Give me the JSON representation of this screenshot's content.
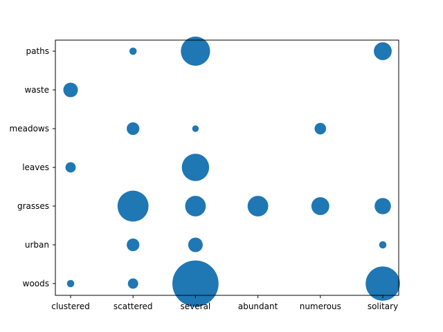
{
  "chart_data": {
    "type": "scatter",
    "x_categories": [
      "clustered",
      "scattered",
      "several",
      "abundant",
      "numerous",
      "solitary"
    ],
    "y_categories": [
      "woods",
      "urban",
      "grasses",
      "leaves",
      "meadows",
      "waste",
      "paths"
    ],
    "points": [
      {
        "x": "clustered",
        "y": "woods",
        "size": 1
      },
      {
        "x": "scattered",
        "y": "woods",
        "size": 2
      },
      {
        "x": "several",
        "y": "woods",
        "size": 40
      },
      {
        "x": "solitary",
        "y": "woods",
        "size": 22
      },
      {
        "x": "scattered",
        "y": "urban",
        "size": 3
      },
      {
        "x": "several",
        "y": "urban",
        "size": 4
      },
      {
        "x": "solitary",
        "y": "urban",
        "size": 1
      },
      {
        "x": "scattered",
        "y": "grasses",
        "size": 18
      },
      {
        "x": "several",
        "y": "grasses",
        "size": 8
      },
      {
        "x": "abundant",
        "y": "grasses",
        "size": 8
      },
      {
        "x": "numerous",
        "y": "grasses",
        "size": 6
      },
      {
        "x": "solitary",
        "y": "grasses",
        "size": 5
      },
      {
        "x": "clustered",
        "y": "leaves",
        "size": 2
      },
      {
        "x": "several",
        "y": "leaves",
        "size": 14
      },
      {
        "x": "scattered",
        "y": "meadows",
        "size": 3
      },
      {
        "x": "several",
        "y": "meadows",
        "size": 0.8
      },
      {
        "x": "numerous",
        "y": "meadows",
        "size": 2.5
      },
      {
        "x": "clustered",
        "y": "waste",
        "size": 4
      },
      {
        "x": "scattered",
        "y": "paths",
        "size": 1
      },
      {
        "x": "several",
        "y": "paths",
        "size": 16
      },
      {
        "x": "solitary",
        "y": "paths",
        "size": 6
      }
    ],
    "marker_color": "#1f77b4",
    "grid": false,
    "legend": "none"
  }
}
